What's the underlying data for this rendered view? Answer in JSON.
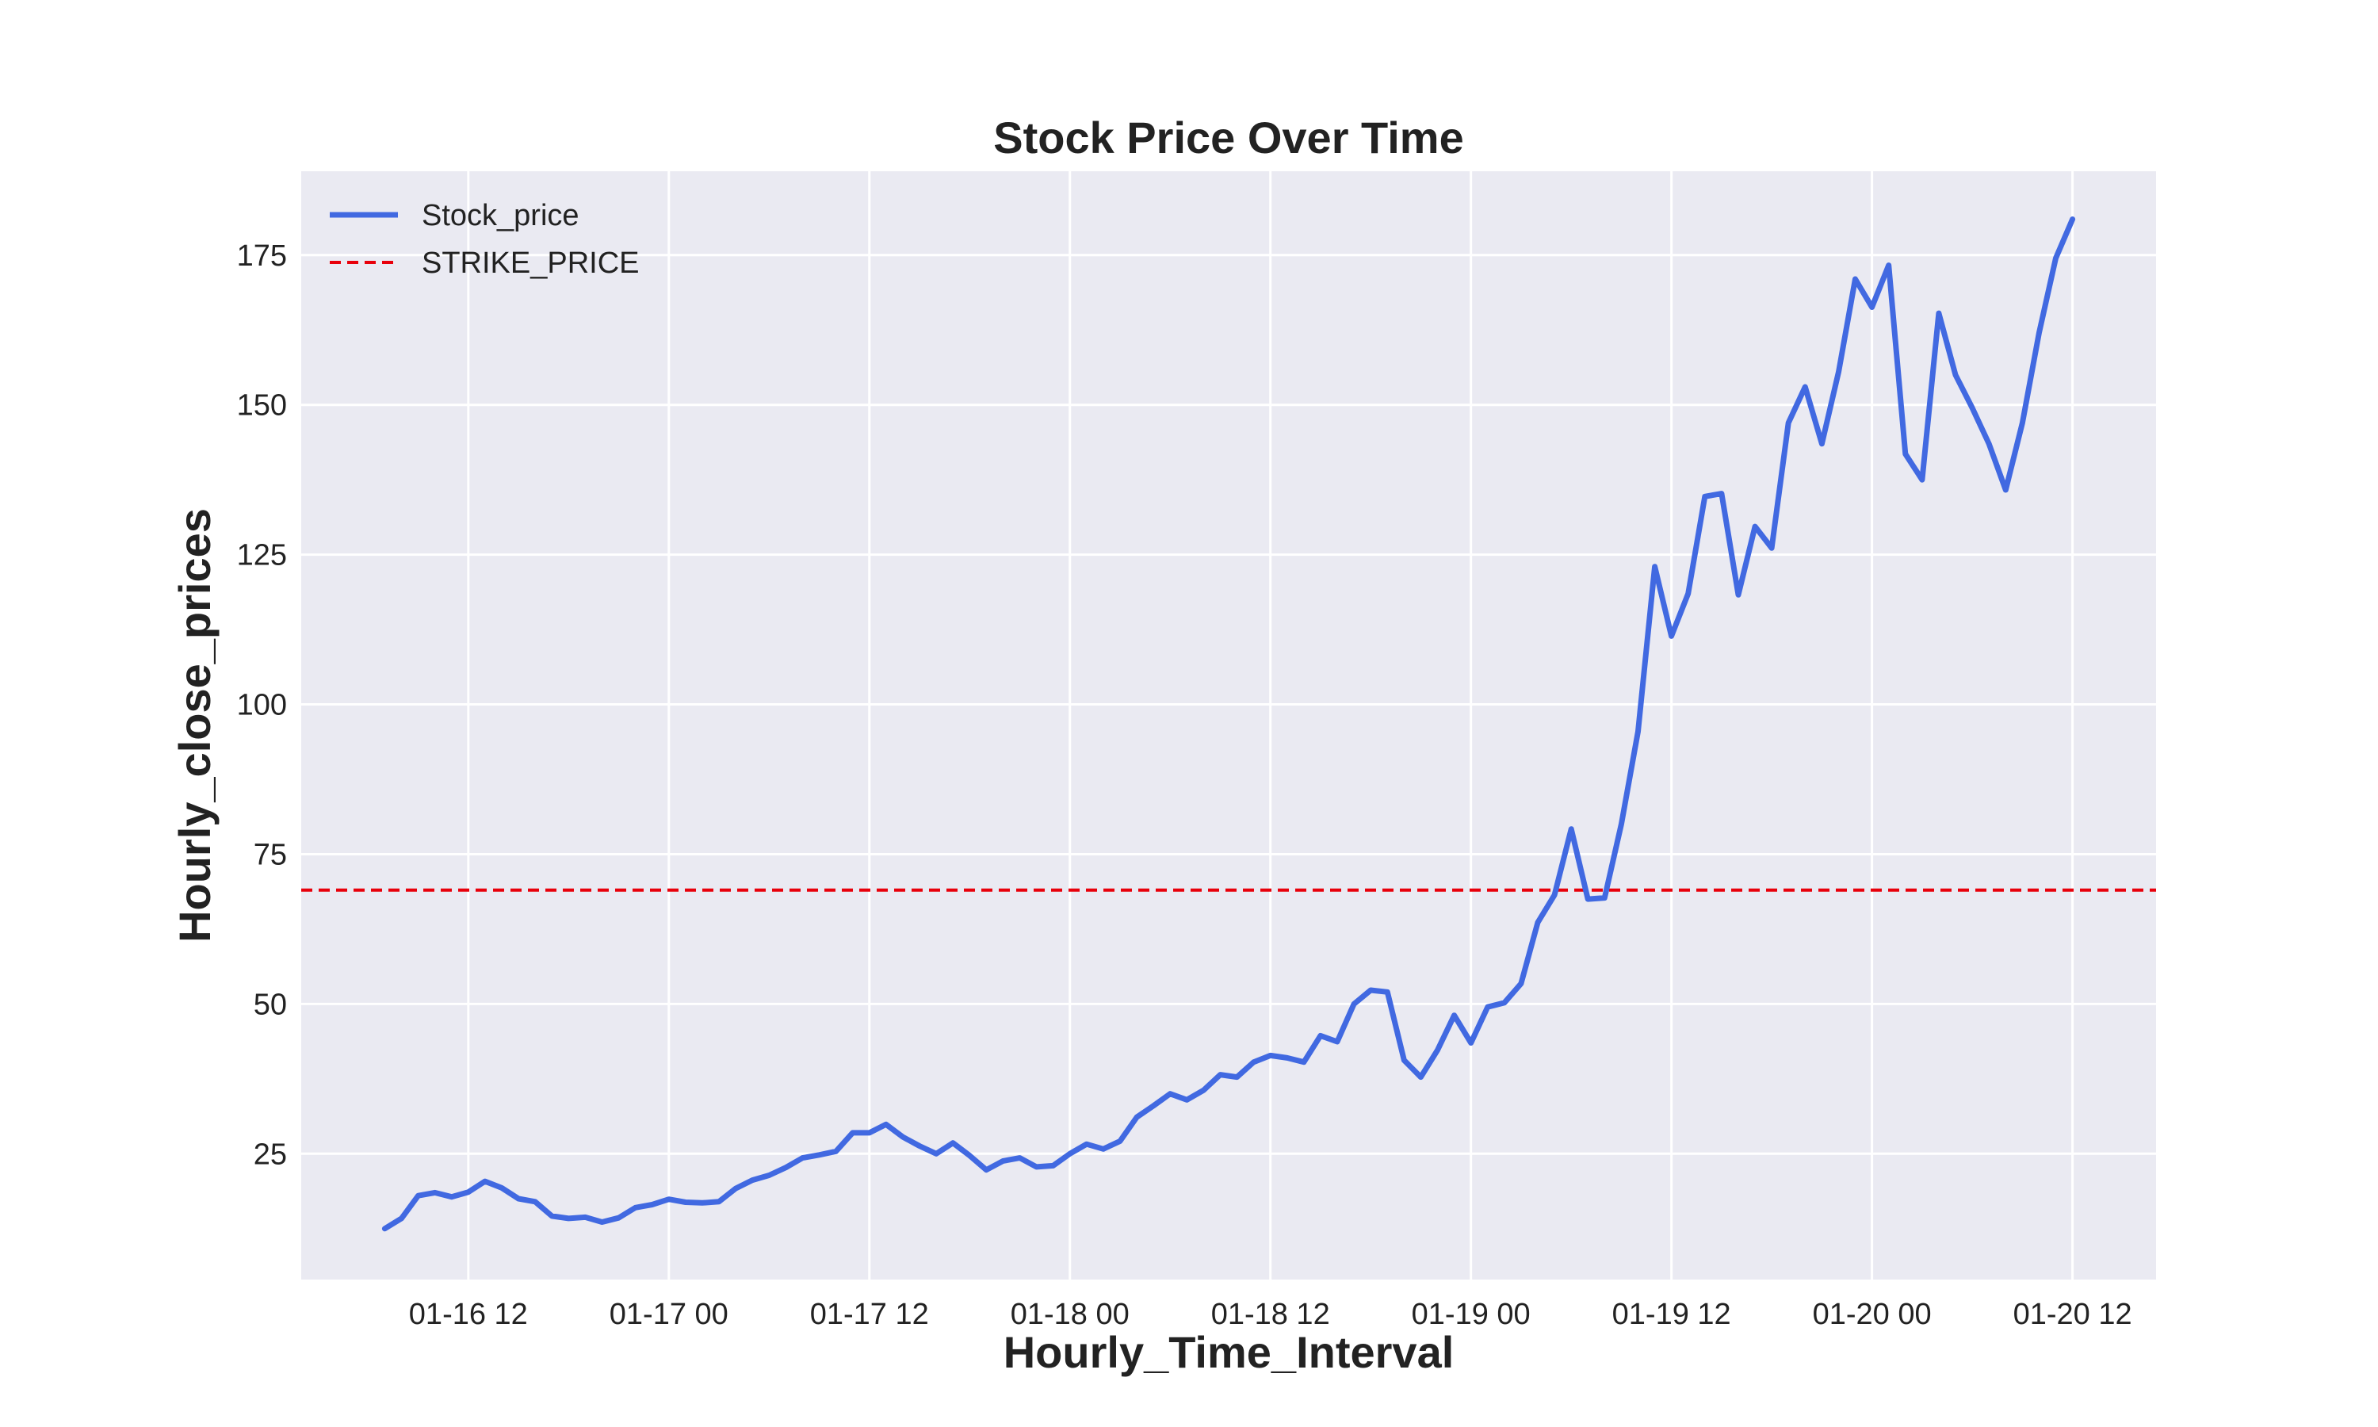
{
  "chart_data": {
    "type": "line",
    "title": "Stock Price Over Time",
    "xlabel": "Hourly_Time_Interval",
    "ylabel": "Hourly_close_prices",
    "x_unit": "hours",
    "x_ticks": [
      {
        "label": "01-16 12",
        "value": 0
      },
      {
        "label": "01-17 00",
        "value": 12
      },
      {
        "label": "01-17 12",
        "value": 24
      },
      {
        "label": "01-18 00",
        "value": 36
      },
      {
        "label": "01-18 12",
        "value": 48
      },
      {
        "label": "01-19 00",
        "value": 60
      },
      {
        "label": "01-19 12",
        "value": 72
      },
      {
        "label": "01-20 00",
        "value": 84
      },
      {
        "label": "01-20 12",
        "value": 96
      }
    ],
    "xlim": [
      -10,
      101
    ],
    "y_ticks": [
      25,
      50,
      75,
      100,
      125,
      150,
      175
    ],
    "ylim": [
      4,
      189
    ],
    "grid": true,
    "legend_position": "top-left",
    "series": [
      {
        "name": "Stock_price",
        "color": "#4169e1",
        "style": "solid",
        "x": [
          -5,
          -4,
          -3,
          -2,
          -1,
          0,
          1,
          2,
          3,
          4,
          5,
          6,
          7,
          8,
          9,
          10,
          11,
          12,
          13,
          14,
          15,
          16,
          17,
          18,
          19,
          20,
          21,
          22,
          23,
          24,
          25,
          26,
          27,
          28,
          29,
          30,
          31,
          32,
          33,
          34,
          35,
          36,
          37,
          38,
          39,
          40,
          41,
          42,
          43,
          44,
          45,
          46,
          47,
          48,
          49,
          50,
          51,
          52,
          53,
          54,
          55,
          56,
          57,
          58,
          59,
          60,
          61,
          62,
          63,
          64,
          65,
          66,
          67,
          68,
          69,
          70,
          71,
          72,
          73,
          74,
          75,
          76,
          77,
          78,
          79,
          80,
          81,
          82,
          83,
          84,
          85,
          86,
          87,
          88,
          89,
          90,
          91,
          92,
          93,
          94,
          95,
          96
        ],
        "y": [
          12.5,
          14.2,
          18.0,
          18.5,
          17.8,
          18.6,
          20.4,
          19.3,
          17.5,
          17.0,
          14.6,
          14.2,
          14.4,
          13.6,
          14.3,
          16.0,
          16.5,
          17.4,
          16.9,
          16.8,
          17.0,
          19.2,
          20.6,
          21.4,
          22.7,
          24.3,
          24.8,
          25.4,
          28.5,
          28.5,
          29.9,
          27.8,
          26.3,
          25.0,
          26.8,
          24.7,
          22.3,
          23.8,
          24.3,
          22.8,
          23.0,
          25.0,
          26.6,
          25.8,
          27.1,
          31.1,
          33.0,
          35.0,
          34.0,
          35.6,
          38.2,
          37.8,
          40.3,
          41.4,
          41.0,
          40.3,
          44.7,
          43.7,
          50.0,
          52.3,
          52.0,
          40.6,
          37.8,
          42.3,
          48.1,
          43.5,
          49.5,
          50.2,
          53.4,
          63.6,
          68.2,
          79.2,
          67.5,
          67.7,
          80.0,
          95.5,
          123.0,
          111.4,
          118.5,
          134.7,
          135.2,
          118.3,
          129.7,
          126.1,
          147.0,
          153.0,
          143.5,
          155.5,
          171.0,
          166.3,
          173.3,
          141.8,
          137.5,
          165.3,
          155.0,
          149.5,
          143.5,
          135.8,
          147.0,
          162.0,
          174.5,
          181.0
        ]
      }
    ],
    "reference_lines": [
      {
        "name": "STRIKE_PRICE",
        "orientation": "horizontal",
        "y": 69,
        "color": "#e8000b",
        "style": "dashed"
      }
    ]
  }
}
